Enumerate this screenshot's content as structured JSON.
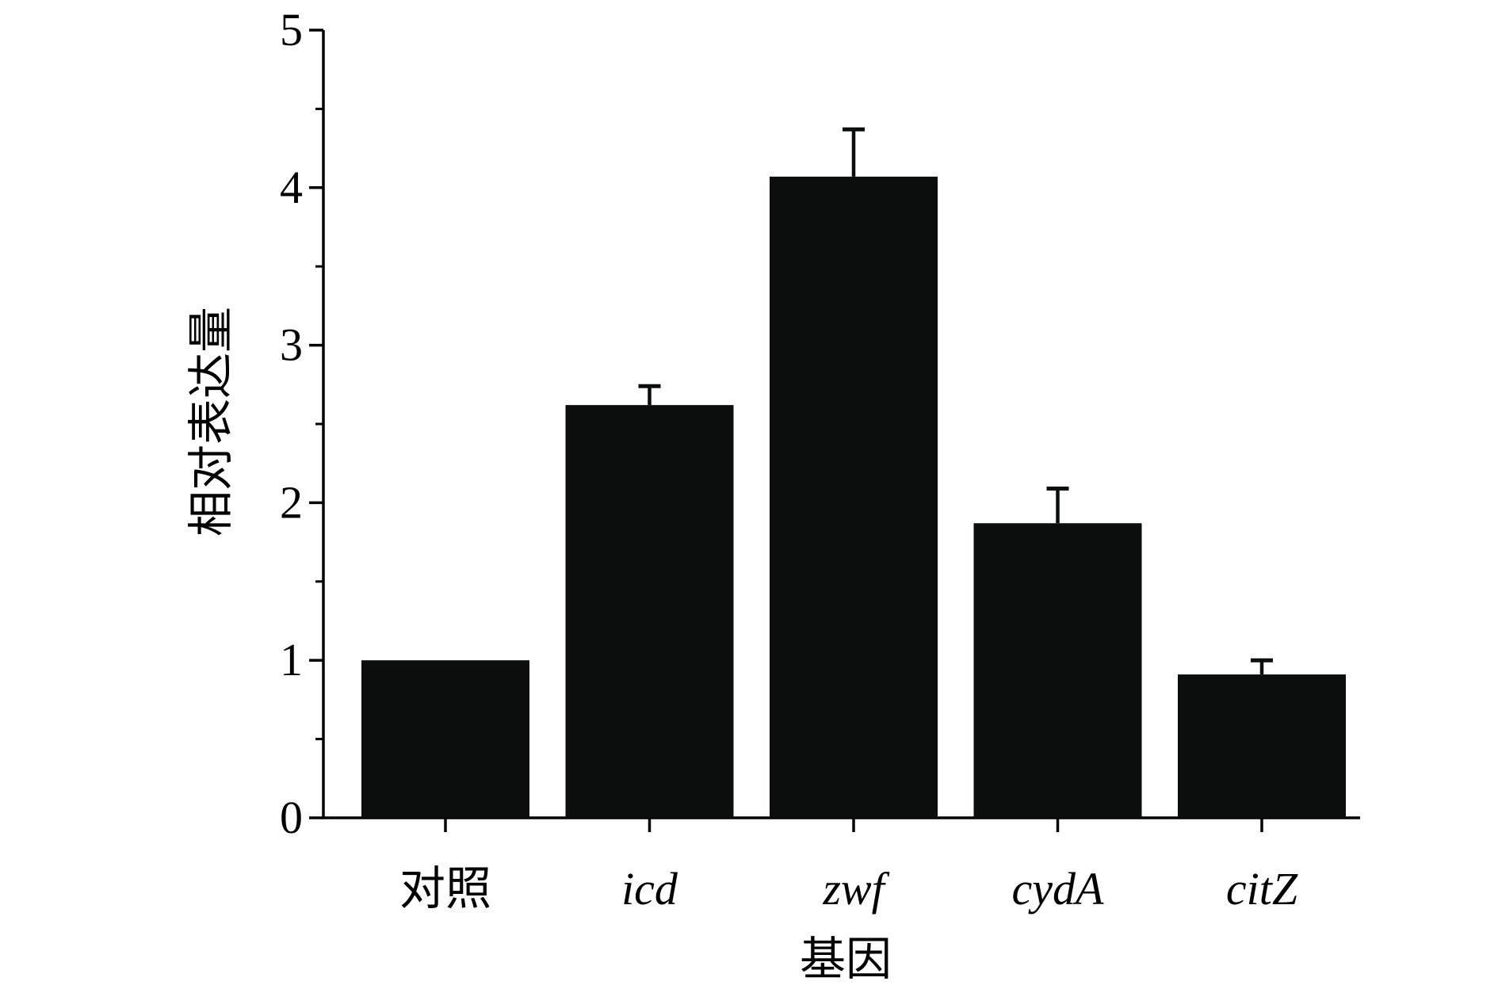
{
  "chart_data": {
    "type": "bar",
    "title": "",
    "xlabel": "基因",
    "ylabel": "相对表达量",
    "categories": [
      "对照",
      "icd",
      "zwf",
      "cydA",
      "citZ"
    ],
    "category_italic": [
      false,
      true,
      true,
      true,
      true
    ],
    "series": [
      {
        "values": [
          1.0,
          2.62,
          4.07,
          1.87,
          0.91
        ],
        "error": [
          0,
          0.12,
          0.3,
          0.22,
          0.09
        ]
      }
    ],
    "ylim": [
      0,
      5
    ],
    "yticks": [
      0,
      1,
      2,
      3,
      4,
      5
    ],
    "y_minor_step": 0.5,
    "grid": false,
    "legend": "none",
    "bar_color": "#0c0d0d",
    "axis_color": "#000000"
  }
}
